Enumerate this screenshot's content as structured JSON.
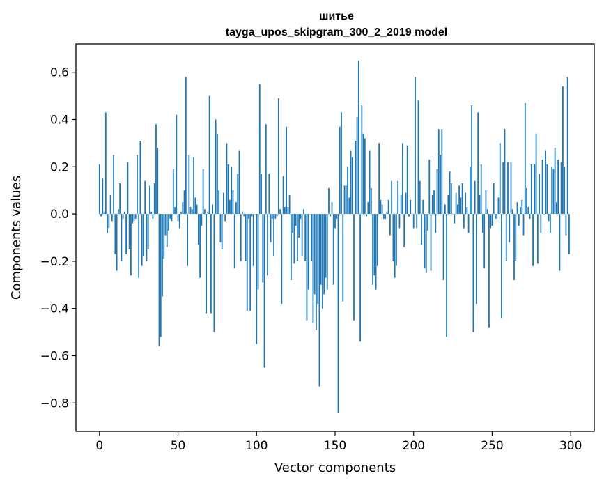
{
  "chart_data": {
    "type": "bar",
    "title": "шитье",
    "subtitle": "tayga_upos_skipgram_300_2_2019 model",
    "xlabel": "Vector components",
    "ylabel": "Components values",
    "xlim": [
      -15,
      315
    ],
    "ylim": [
      -0.92,
      0.72
    ],
    "xticks": [
      0,
      50,
      100,
      150,
      200,
      250,
      300
    ],
    "yticks": [
      -0.8,
      -0.6,
      -0.4,
      -0.2,
      0.0,
      0.2,
      0.4,
      0.6
    ],
    "ytick_labels": [
      "−0.8",
      "−0.6",
      "−0.4",
      "−0.2",
      "0.0",
      "0.2",
      "0.4",
      "0.6"
    ],
    "xtick_labels": [
      "0",
      "50",
      "100",
      "150",
      "200",
      "250",
      "300"
    ],
    "bar_color": "#1f77b4",
    "grid": false,
    "x": [
      0,
      1,
      2,
      3,
      4,
      5,
      6,
      7,
      8,
      9,
      10,
      11,
      12,
      13,
      14,
      15,
      16,
      17,
      18,
      19,
      20,
      21,
      22,
      23,
      24,
      25,
      26,
      27,
      28,
      29,
      30,
      31,
      32,
      33,
      34,
      35,
      36,
      37,
      38,
      39,
      40,
      41,
      42,
      43,
      44,
      45,
      46,
      47,
      48,
      49,
      50,
      51,
      52,
      53,
      54,
      55,
      56,
      57,
      58,
      59,
      60,
      61,
      62,
      63,
      64,
      65,
      66,
      67,
      68,
      69,
      70,
      71,
      72,
      73,
      74,
      75,
      76,
      77,
      78,
      79,
      80,
      81,
      82,
      83,
      84,
      85,
      86,
      87,
      88,
      89,
      90,
      91,
      92,
      93,
      94,
      95,
      96,
      97,
      98,
      99,
      100,
      101,
      102,
      103,
      104,
      105,
      106,
      107,
      108,
      109,
      110,
      111,
      112,
      113,
      114,
      115,
      116,
      117,
      118,
      119,
      120,
      121,
      122,
      123,
      124,
      125,
      126,
      127,
      128,
      129,
      130,
      131,
      132,
      133,
      134,
      135,
      136,
      137,
      138,
      139,
      140,
      141,
      142,
      143,
      144,
      145,
      146,
      147,
      148,
      149,
      150,
      151,
      152,
      153,
      154,
      155,
      156,
      157,
      158,
      159,
      160,
      161,
      162,
      163,
      164,
      165,
      166,
      167,
      168,
      169,
      170,
      171,
      172,
      173,
      174,
      175,
      176,
      177,
      178,
      179,
      180,
      181,
      182,
      183,
      184,
      185,
      186,
      187,
      188,
      189,
      190,
      191,
      192,
      193,
      194,
      195,
      196,
      197,
      198,
      199,
      200,
      201,
      202,
      203,
      204,
      205,
      206,
      207,
      208,
      209,
      210,
      211,
      212,
      213,
      214,
      215,
      216,
      217,
      218,
      219,
      220,
      221,
      222,
      223,
      224,
      225,
      226,
      227,
      228,
      229,
      230,
      231,
      232,
      233,
      234,
      235,
      236,
      237,
      238,
      239,
      240,
      241,
      242,
      243,
      244,
      245,
      246,
      247,
      248,
      249,
      250,
      251,
      252,
      253,
      254,
      255,
      256,
      257,
      258,
      259,
      260,
      261,
      262,
      263,
      264,
      265,
      266,
      267,
      268,
      269,
      270,
      271,
      272,
      273,
      274,
      275,
      276,
      277,
      278,
      279,
      280,
      281,
      282,
      283,
      284,
      285,
      286,
      287,
      288,
      289,
      290,
      291,
      292,
      293,
      294,
      295,
      296,
      297,
      298,
      299
    ],
    "values": [
      0.21,
      -0.01,
      0.15,
      0.01,
      0.43,
      -0.08,
      -0.06,
      0.08,
      -0.03,
      0.25,
      -0.17,
      -0.24,
      0.02,
      0.13,
      -0.2,
      -0.02,
      0.01,
      -0.17,
      0.22,
      -0.15,
      -0.26,
      -0.04,
      -0.03,
      -0.02,
      0.25,
      -0.27,
      0.31,
      -0.22,
      -0.18,
      0.14,
      -0.2,
      -0.15,
      0.12,
      0.01,
      -0.02,
      0.13,
      0.38,
      0.28,
      -0.56,
      -0.52,
      -0.35,
      -0.19,
      -0.09,
      -0.14,
      -0.07,
      -0.02,
      -0.03,
      0.19,
      0.03,
      0.42,
      -0.03,
      -0.06,
      0.01,
      0.05,
      0.1,
      0.58,
      -0.22,
      0.25,
      0.03,
      0.02,
      0.24,
      0.07,
      0.04,
      -0.13,
      -0.27,
      -0.05,
      0.19,
      0.02,
      -0.42,
      0.01,
      0.5,
      -0.42,
      0.04,
      -0.5,
      0.4,
      0.34,
      0.1,
      -0.12,
      -0.15,
      0.09,
      -0.03,
      0.3,
      0.21,
      0.06,
      0.2,
      0.1,
      -0.23,
      0.05,
      0.17,
      0.27,
      -0.2,
      0.01,
      -0.01,
      -0.2,
      -0.41,
      -0.02,
      -0.41,
      -0.01,
      -0.22,
      0.0,
      -0.55,
      -0.32,
      0.55,
      0.17,
      -0.29,
      -0.65,
      0.38,
      -0.26,
      0.17,
      -0.12,
      -0.02,
      -0.18,
      -0.02,
      -0.01,
      0.49,
      0.02,
      -0.38,
      0.16,
      0.03,
      0.37,
      0.03,
      0.08,
      -0.28,
      -0.08,
      -0.21,
      -0.05,
      -0.2,
      -0.1,
      -0.02,
      -0.18,
      0.02,
      -0.2,
      -0.45,
      -0.32,
      0.0,
      -0.2,
      -0.46,
      -0.34,
      -0.49,
      -0.38,
      -0.73,
      -0.3,
      -0.4,
      -0.34,
      -0.27,
      -0.32,
      0.11,
      -0.01,
      0.05,
      -0.3,
      -0.06,
      -0.02,
      -0.84,
      0.37,
      0.43,
      -0.37,
      0.12,
      0.12,
      0.2,
      0.07,
      0.27,
      0.24,
      -0.45,
      0.31,
      0.41,
      0.65,
      -0.54,
      0.46,
      0.34,
      0.32,
      -0.01,
      0.05,
      0.27,
      0.11,
      -0.3,
      -0.26,
      -0.32,
      -0.22,
      0.3,
      0.06,
      0.04,
      -0.02,
      -0.02,
      0.01,
      0.06,
      -0.09,
      0.14,
      -0.2,
      -0.27,
      -0.22,
      0.14,
      -0.06,
      0.08,
      0.3,
      -0.14,
      0.09,
      0.29,
      -0.01,
      0.06,
      0.0,
      -0.06,
      0.58,
      -0.06,
      0.48,
      0.14,
      -0.13,
      0.06,
      -0.23,
      -0.25,
      -0.07,
      0.23,
      -0.24,
      0.08,
      0.1,
      -0.08,
      0.19,
      0.36,
      0.25,
      0.36,
      -0.28,
      0.04,
      -0.52,
      0.08,
      0.18,
      0.13,
      0.0,
      -0.04,
      0.09,
      0.04,
      0.12,
      0.07,
      0.13,
      -0.06,
      0.09,
      0.03,
      -0.08,
      0.2,
      0.46,
      -0.5,
      0.14,
      -0.38,
      0.43,
      0.08,
      0.21,
      -0.08,
      -0.23,
      0.1,
      0.02,
      -0.48,
      -0.06,
      -0.05,
      0.13,
      -0.02,
      -0.02,
      0.07,
      0.3,
      -0.44,
      0.22,
      0.36,
      -0.2,
      0.22,
      -0.12,
      0.22,
      0.02,
      -0.28,
      -0.2,
      0.05,
      -0.05,
      0.03,
      0.06,
      -0.09,
      0.47,
      0.11,
      0.03,
      -0.02,
      0.21,
      -0.22,
      0.21,
      0.34,
      -0.21,
      0.17,
      -0.08,
      0.23,
      0.0,
      0.27,
      0.21,
      -0.03,
      -0.08,
      0.2,
      0.19,
      0.28,
      0.05,
      0.23,
      -0.24,
      0.22,
      0.54,
      0.2,
      -0.09,
      0.58,
      -0.17
    ]
  }
}
